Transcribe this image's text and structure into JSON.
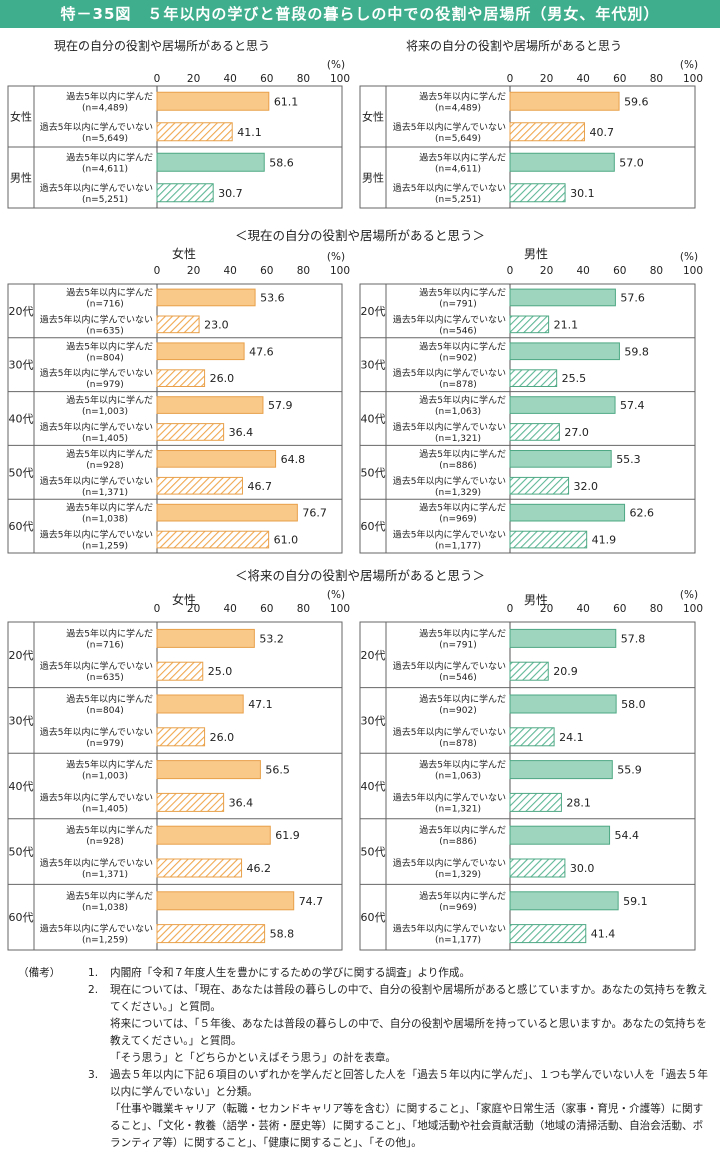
{
  "figure_title": "特－35図　５年以内の学びと普段の暮らしの中での役割や居場所（男女、年代別）",
  "labels": {
    "learned": "過去5年以内に学んだ",
    "not_learned": "過去5年以内に学んでいない",
    "pct": "(%)"
  },
  "colors": {
    "female": "#f9c98a",
    "female_border": "#e8a04a",
    "male": "#9ed5be",
    "male_border": "#4ea884"
  },
  "chart_data": [
    {
      "type": "bar",
      "orientation": "horizontal",
      "title": "現在の自分の役割や居場所があると思う",
      "xlim": [
        0,
        100
      ],
      "ticks": [
        0,
        20,
        40,
        60,
        80,
        100
      ],
      "groups": [
        {
          "label": "女性",
          "color": "female",
          "bars": [
            {
              "name": "過去5年以内に学んだ",
              "n": "(n=4,489)",
              "value": 61.1,
              "hatched": false
            },
            {
              "name": "過去5年以内に学んでいない",
              "n": "(n=5,649)",
              "value": 41.1,
              "hatched": true
            }
          ]
        },
        {
          "label": "男性",
          "color": "male",
          "bars": [
            {
              "name": "過去5年以内に学んだ",
              "n": "(n=4,611)",
              "value": 58.6,
              "hatched": false
            },
            {
              "name": "過去5年以内に学んでいない",
              "n": "(n=5,251)",
              "value": 30.7,
              "hatched": true
            }
          ]
        }
      ]
    },
    {
      "type": "bar",
      "orientation": "horizontal",
      "title": "将来の自分の役割や居場所があると思う",
      "xlim": [
        0,
        100
      ],
      "ticks": [
        0,
        20,
        40,
        60,
        80,
        100
      ],
      "groups": [
        {
          "label": "女性",
          "color": "female",
          "bars": [
            {
              "name": "過去5年以内に学んだ",
              "n": "(n=4,489)",
              "value": 59.6,
              "hatched": false
            },
            {
              "name": "過去5年以内に学んでいない",
              "n": "(n=5,649)",
              "value": 40.7,
              "hatched": true
            }
          ]
        },
        {
          "label": "男性",
          "color": "male",
          "bars": [
            {
              "name": "過去5年以内に学んだ",
              "n": "(n=4,611)",
              "value": 57.0,
              "hatched": false
            },
            {
              "name": "過去5年以内に学んでいない",
              "n": "(n=5,251)",
              "value": 30.1,
              "hatched": true
            }
          ]
        }
      ]
    },
    {
      "type": "bar",
      "orientation": "horizontal",
      "section": "＜現在の自分の役割や居場所があると思う＞",
      "title": "女性",
      "xlim": [
        0,
        100
      ],
      "ticks": [
        0,
        20,
        40,
        60,
        80,
        100
      ],
      "groups": [
        {
          "label": "20代",
          "color": "female",
          "bars": [
            {
              "name": "過去5年以内に学んだ",
              "n": "(n=716)",
              "value": 53.6,
              "hatched": false
            },
            {
              "name": "過去5年以内に学んでいない",
              "n": "(n=635)",
              "value": 23.0,
              "hatched": true
            }
          ]
        },
        {
          "label": "30代",
          "color": "female",
          "bars": [
            {
              "name": "過去5年以内に学んだ",
              "n": "(n=804)",
              "value": 47.6,
              "hatched": false
            },
            {
              "name": "過去5年以内に学んでいない",
              "n": "(n=979)",
              "value": 26.0,
              "hatched": true
            }
          ]
        },
        {
          "label": "40代",
          "color": "female",
          "bars": [
            {
              "name": "過去5年以内に学んだ",
              "n": "(n=1,003)",
              "value": 57.9,
              "hatched": false
            },
            {
              "name": "過去5年以内に学んでいない",
              "n": "(n=1,405)",
              "value": 36.4,
              "hatched": true
            }
          ]
        },
        {
          "label": "50代",
          "color": "female",
          "bars": [
            {
              "name": "過去5年以内に学んだ",
              "n": "(n=928)",
              "value": 64.8,
              "hatched": false
            },
            {
              "name": "過去5年以内に学んでいない",
              "n": "(n=1,371)",
              "value": 46.7,
              "hatched": true
            }
          ]
        },
        {
          "label": "60代",
          "color": "female",
          "bars": [
            {
              "name": "過去5年以内に学んだ",
              "n": "(n=1,038)",
              "value": 76.7,
              "hatched": false
            },
            {
              "name": "過去5年以内に学んでいない",
              "n": "(n=1,259)",
              "value": 61.0,
              "hatched": true
            }
          ]
        }
      ]
    },
    {
      "type": "bar",
      "orientation": "horizontal",
      "title": "男性",
      "xlim": [
        0,
        100
      ],
      "ticks": [
        0,
        20,
        40,
        60,
        80,
        100
      ],
      "groups": [
        {
          "label": "20代",
          "color": "male",
          "bars": [
            {
              "name": "過去5年以内に学んだ",
              "n": "(n=791)",
              "value": 57.6,
              "hatched": false
            },
            {
              "name": "過去5年以内に学んでいない",
              "n": "(n=546)",
              "value": 21.1,
              "hatched": true
            }
          ]
        },
        {
          "label": "30代",
          "color": "male",
          "bars": [
            {
              "name": "過去5年以内に学んだ",
              "n": "(n=902)",
              "value": 59.8,
              "hatched": false
            },
            {
              "name": "過去5年以内に学んでいない",
              "n": "(n=878)",
              "value": 25.5,
              "hatched": true
            }
          ]
        },
        {
          "label": "40代",
          "color": "male",
          "bars": [
            {
              "name": "過去5年以内に学んだ",
              "n": "(n=1,063)",
              "value": 57.4,
              "hatched": false
            },
            {
              "name": "過去5年以内に学んでいない",
              "n": "(n=1,321)",
              "value": 27.0,
              "hatched": true
            }
          ]
        },
        {
          "label": "50代",
          "color": "male",
          "bars": [
            {
              "name": "過去5年以内に学んだ",
              "n": "(n=886)",
              "value": 55.3,
              "hatched": false
            },
            {
              "name": "過去5年以内に学んでいない",
              "n": "(n=1,329)",
              "value": 32.0,
              "hatched": true
            }
          ]
        },
        {
          "label": "60代",
          "color": "male",
          "bars": [
            {
              "name": "過去5年以内に学んだ",
              "n": "(n=969)",
              "value": 62.6,
              "hatched": false
            },
            {
              "name": "過去5年以内に学んでいない",
              "n": "(n=1,177)",
              "value": 41.9,
              "hatched": true
            }
          ]
        }
      ]
    },
    {
      "type": "bar",
      "orientation": "horizontal",
      "section": "＜将来の自分の役割や居場所があると思う＞",
      "title": "女性",
      "xlim": [
        0,
        100
      ],
      "ticks": [
        0,
        20,
        40,
        60,
        80,
        100
      ],
      "groups": [
        {
          "label": "20代",
          "color": "female",
          "bars": [
            {
              "name": "過去5年以内に学んだ",
              "n": "(n=716)",
              "value": 53.2,
              "hatched": false
            },
            {
              "name": "過去5年以内に学んでいない",
              "n": "(n=635)",
              "value": 25.0,
              "hatched": true
            }
          ]
        },
        {
          "label": "30代",
          "color": "female",
          "bars": [
            {
              "name": "過去5年以内に学んだ",
              "n": "(n=804)",
              "value": 47.1,
              "hatched": false
            },
            {
              "name": "過去5年以内に学んでいない",
              "n": "(n=979)",
              "value": 26.0,
              "hatched": true
            }
          ]
        },
        {
          "label": "40代",
          "color": "female",
          "bars": [
            {
              "name": "過去5年以内に学んだ",
              "n": "(n=1,003)",
              "value": 56.5,
              "hatched": false
            },
            {
              "name": "過去5年以内に学んでいない",
              "n": "(n=1,405)",
              "value": 36.4,
              "hatched": true
            }
          ]
        },
        {
          "label": "50代",
          "color": "female",
          "bars": [
            {
              "name": "過去5年以内に学んだ",
              "n": "(n=928)",
              "value": 61.9,
              "hatched": false
            },
            {
              "name": "過去5年以内に学んでいない",
              "n": "(n=1,371)",
              "value": 46.2,
              "hatched": true
            }
          ]
        },
        {
          "label": "60代",
          "color": "female",
          "bars": [
            {
              "name": "過去5年以内に学んだ",
              "n": "(n=1,038)",
              "value": 74.7,
              "hatched": false
            },
            {
              "name": "過去5年以内に学んでいない",
              "n": "(n=1,259)",
              "value": 58.8,
              "hatched": true
            }
          ]
        }
      ]
    },
    {
      "type": "bar",
      "orientation": "horizontal",
      "title": "男性",
      "xlim": [
        0,
        100
      ],
      "ticks": [
        0,
        20,
        40,
        60,
        80,
        100
      ],
      "groups": [
        {
          "label": "20代",
          "color": "male",
          "bars": [
            {
              "name": "過去5年以内に学んだ",
              "n": "(n=791)",
              "value": 57.8,
              "hatched": false
            },
            {
              "name": "過去5年以内に学んでいない",
              "n": "(n=546)",
              "value": 20.9,
              "hatched": true
            }
          ]
        },
        {
          "label": "30代",
          "color": "male",
          "bars": [
            {
              "name": "過去5年以内に学んだ",
              "n": "(n=902)",
              "value": 58.0,
              "hatched": false
            },
            {
              "name": "過去5年以内に学んでいない",
              "n": "(n=878)",
              "value": 24.1,
              "hatched": true
            }
          ]
        },
        {
          "label": "40代",
          "color": "male",
          "bars": [
            {
              "name": "過去5年以内に学んだ",
              "n": "(n=1,063)",
              "value": 55.9,
              "hatched": false
            },
            {
              "name": "過去5年以内に学んでいない",
              "n": "(n=1,321)",
              "value": 28.1,
              "hatched": true
            }
          ]
        },
        {
          "label": "50代",
          "color": "male",
          "bars": [
            {
              "name": "過去5年以内に学んだ",
              "n": "(n=886)",
              "value": 54.4,
              "hatched": false
            },
            {
              "name": "過去5年以内に学んでいない",
              "n": "(n=1,329)",
              "value": 30.0,
              "hatched": true
            }
          ]
        },
        {
          "label": "60代",
          "color": "male",
          "bars": [
            {
              "name": "過去5年以内に学んだ",
              "n": "(n=969)",
              "value": 59.1,
              "hatched": false
            },
            {
              "name": "過去5年以内に学んでいない",
              "n": "(n=1,177)",
              "value": 41.4,
              "hatched": true
            }
          ]
        }
      ]
    }
  ],
  "notes": {
    "label": "（備考）",
    "items": [
      {
        "num": "1.",
        "lines": [
          "内閣府「令和７年度人生を豊かにするための学びに関する調査」より作成。"
        ]
      },
      {
        "num": "2.",
        "lines": [
          "現在については、「現在、あなたは普段の暮らしの中で、自分の役割や居場所があると感じていますか。あなたの気持ちを教えてください。」と質問。",
          "将来については、「５年後、あなたは普段の暮らしの中で、自分の役割や居場所を持っていると思いますか。あなたの気持ちを教えてください。」と質問。",
          "「そう思う」と「どちらかといえばそう思う」の計を表章。"
        ]
      },
      {
        "num": "3.",
        "lines": [
          "過去５年以内に下記６項目のいずれかを学んだと回答した人を「過去５年以内に学んだ」、１つも学んでいない人を「過去５年以内に学んでいない」と分類。",
          "「仕事や職業キャリア（転職・セカンドキャリア等を含む）に関すること」、「家庭や日常生活（家事・育児・介護等）に関すること」、「文化・教養（語学・芸術・歴史等）に関すること」、「地域活動や社会貢献活動（地域の清掃活動、自治会活動、ボランティア等）に関すること」、「健康に関すること」、「その他」。"
        ]
      }
    ]
  }
}
